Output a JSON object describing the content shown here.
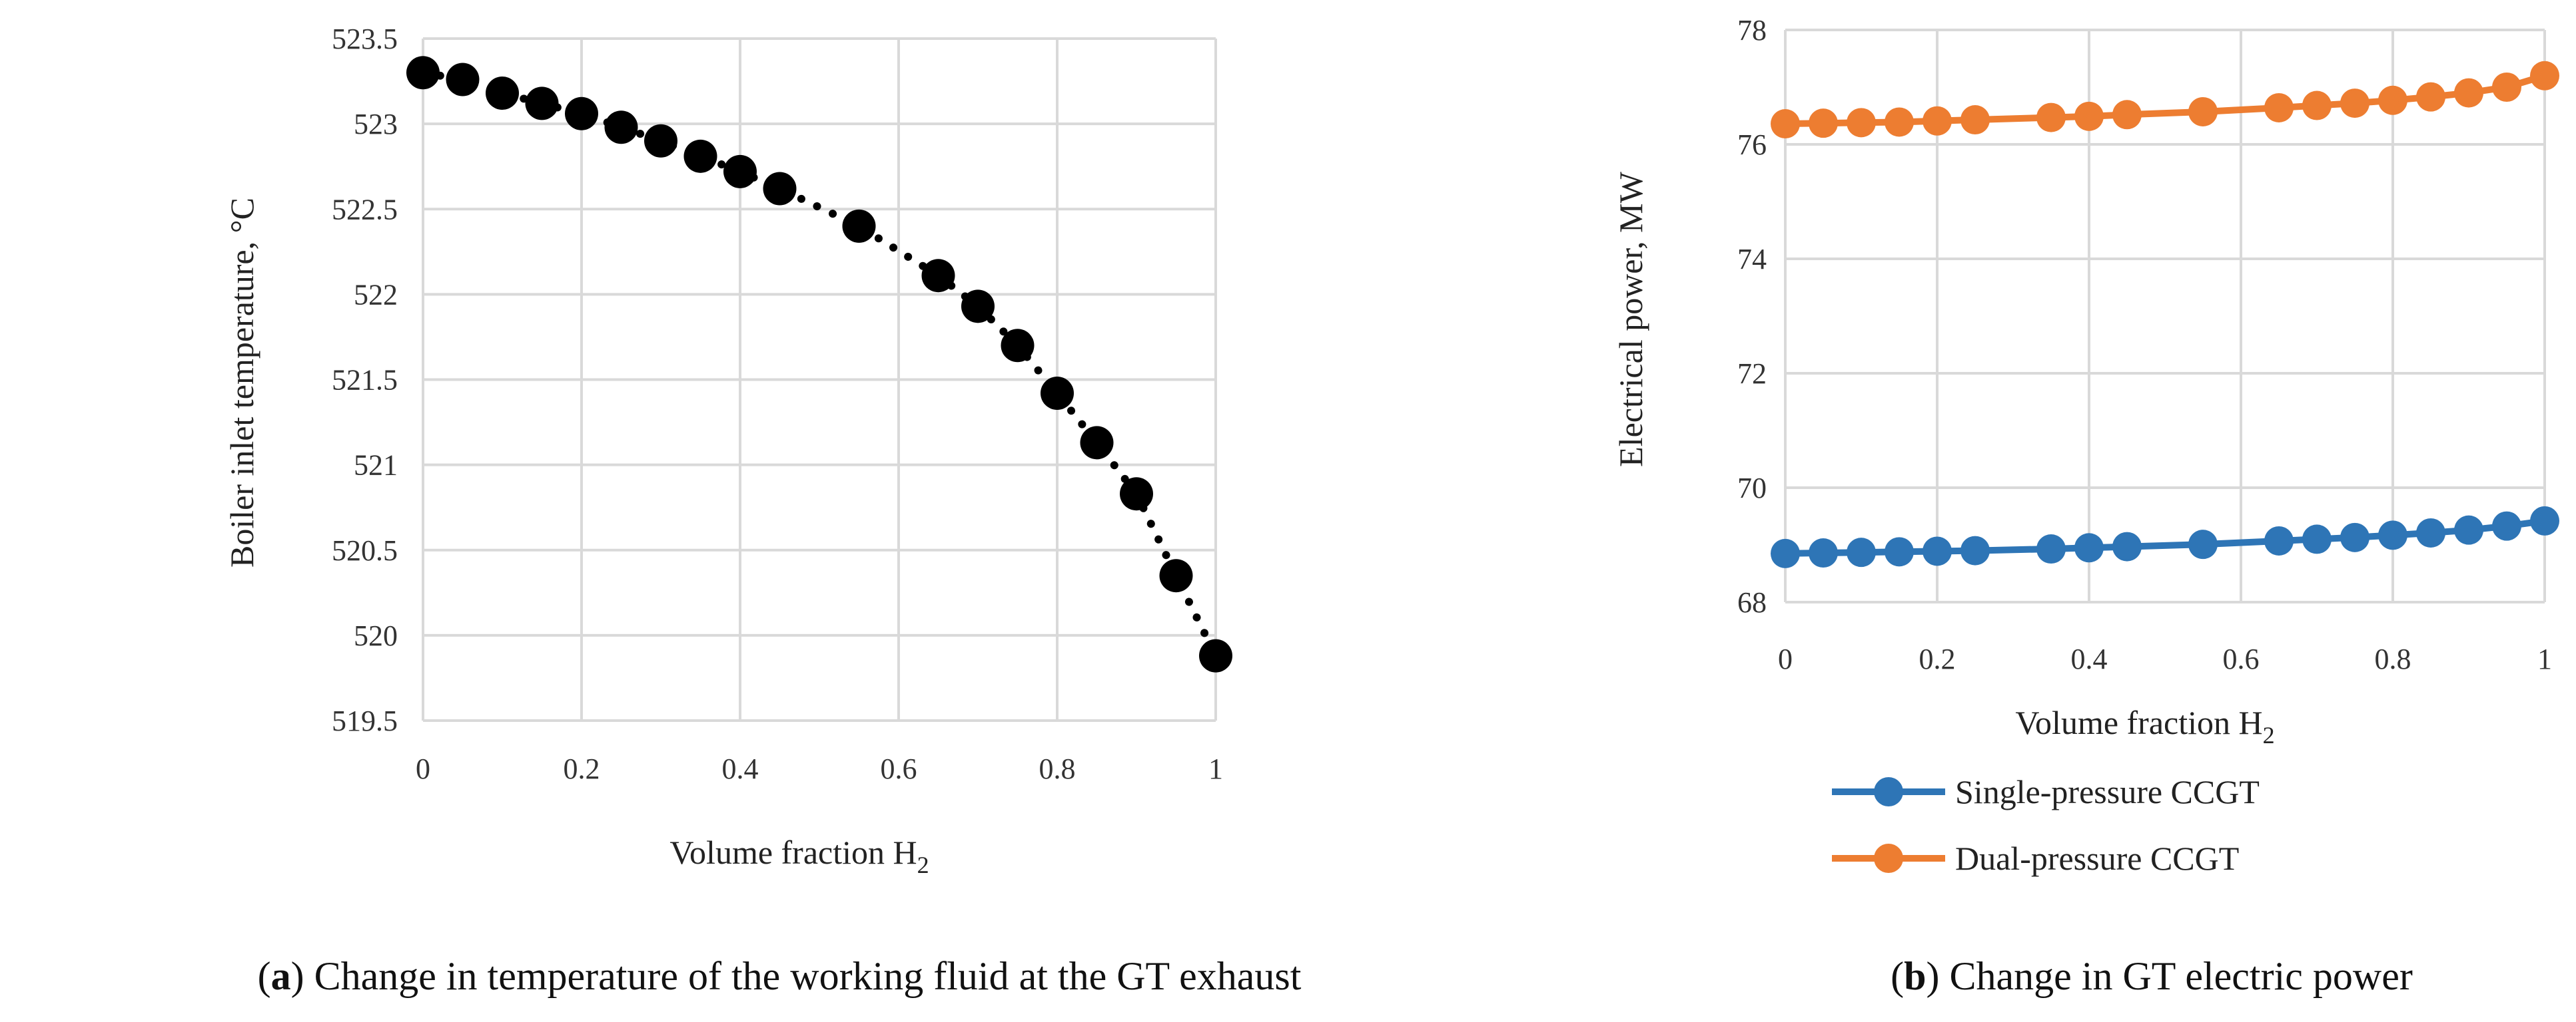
{
  "chart_data": [
    {
      "type": "scatter",
      "panel_letter": "a",
      "caption": "Change in temperature of the working fluid at the GT exhaust",
      "xlabel_main": "Volume fraction H",
      "xlabel_sub": "2",
      "ylabel": "Boiler inlet temperature, °C",
      "xlim": [
        0,
        1
      ],
      "ylim": [
        519.5,
        523.5
      ],
      "xticks": [
        0,
        0.2,
        0.4,
        0.6,
        0.8,
        1
      ],
      "xtick_labels": [
        "0",
        "0.2",
        "0.4",
        "0.6",
        "0.8",
        "1"
      ],
      "yticks": [
        519.5,
        520,
        520.5,
        521,
        521.5,
        522,
        522.5,
        523,
        523.5
      ],
      "ytick_labels": [
        "519.5",
        "520",
        "520.5",
        "521",
        "521.5",
        "522",
        "522.5",
        "523",
        "523.5"
      ],
      "grid": true,
      "trendline": "dotted",
      "color": "#000000",
      "x": [
        0,
        0.05,
        0.1,
        0.15,
        0.2,
        0.25,
        0.3,
        0.35,
        0.4,
        0.45,
        0.55,
        0.65,
        0.7,
        0.75,
        0.8,
        0.85,
        0.9,
        0.95,
        1
      ],
      "y": [
        523.3,
        523.26,
        523.18,
        523.12,
        523.06,
        522.98,
        522.9,
        522.81,
        522.72,
        522.62,
        522.4,
        522.11,
        521.93,
        521.7,
        521.42,
        521.13,
        520.83,
        520.35,
        519.88
      ]
    },
    {
      "type": "line",
      "panel_letter": "b",
      "caption": "Change in GT electric power",
      "xlabel_main": "Volume fraction H",
      "xlabel_sub": "2",
      "ylabel": "Electrical power, MW",
      "xlim": [
        0,
        1
      ],
      "ylim": [
        68,
        78
      ],
      "xticks": [
        0,
        0.2,
        0.4,
        0.6,
        0.8,
        1
      ],
      "xtick_labels": [
        "0",
        "0.2",
        "0.4",
        "0.6",
        "0.8",
        "1"
      ],
      "yticks": [
        68,
        70,
        72,
        74,
        76,
        78
      ],
      "ytick_labels": [
        "68",
        "70",
        "72",
        "74",
        "76",
        "78"
      ],
      "grid": true,
      "legend_position": "bottom",
      "x": [
        0,
        0.05,
        0.1,
        0.15,
        0.2,
        0.25,
        0.35,
        0.4,
        0.45,
        0.55,
        0.65,
        0.7,
        0.75,
        0.8,
        0.85,
        0.9,
        0.95,
        1
      ],
      "series": [
        {
          "name": "Single-pressure CCGT",
          "color": "#2e75b6",
          "values": [
            68.85,
            68.86,
            68.87,
            68.88,
            68.89,
            68.9,
            68.93,
            68.95,
            68.97,
            69.01,
            69.07,
            69.1,
            69.13,
            69.17,
            69.21,
            69.26,
            69.33,
            69.42
          ]
        },
        {
          "name": "Dual-pressure CCGT",
          "color": "#ed7d31",
          "values": [
            76.36,
            76.37,
            76.38,
            76.39,
            76.41,
            76.43,
            76.47,
            76.49,
            76.52,
            76.57,
            76.64,
            76.68,
            76.72,
            76.77,
            76.83,
            76.9,
            77.0,
            77.2
          ]
        }
      ]
    }
  ]
}
